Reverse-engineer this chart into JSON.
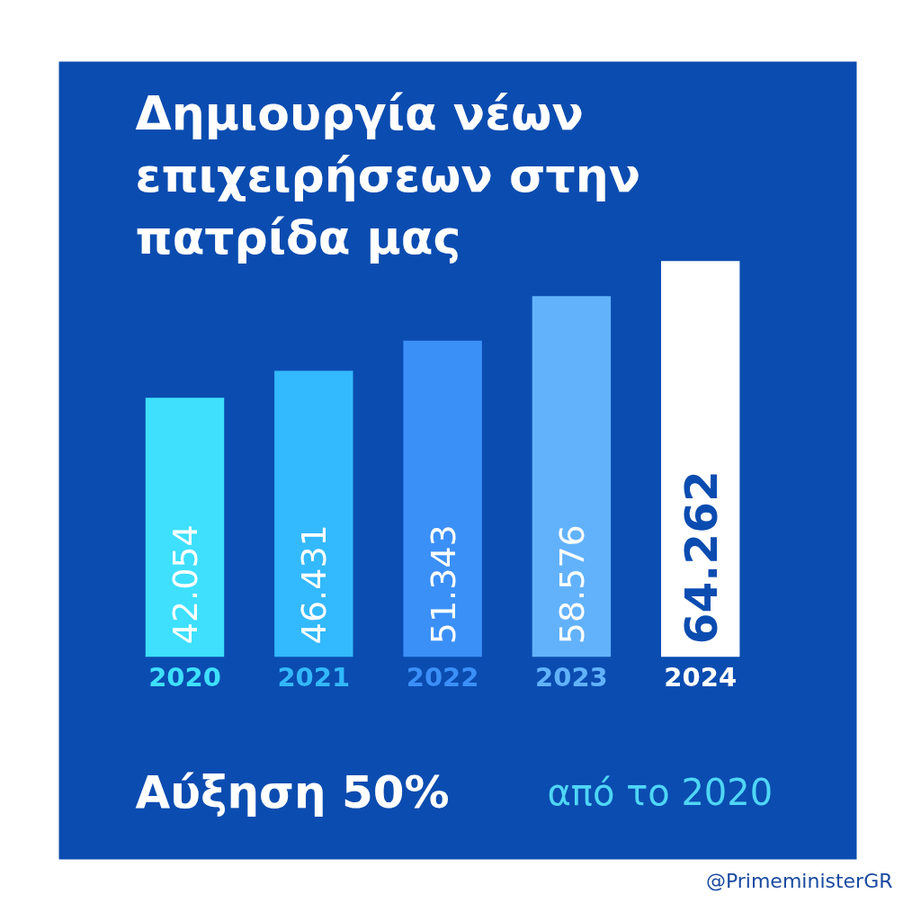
{
  "chart_data": {
    "type": "bar",
    "title": "Δημιουργία νέων\nεπιχειρήσεων στην\nπατρίδα μας",
    "categories": [
      "2020",
      "2021",
      "2022",
      "2023",
      "2024"
    ],
    "values": [
      42054,
      46431,
      51343,
      58576,
      64262
    ],
    "value_labels": [
      "42.054",
      "46.431",
      "51.343",
      "58.576",
      "64.262"
    ],
    "colors": [
      "#3ee0fd",
      "#33b9fd",
      "#3b90f8",
      "#62b2fb",
      "#ffffff"
    ],
    "annotations": [
      "Αύξηση 50%",
      "από το 2020",
      "@PrimeministerGR"
    ]
  }
}
